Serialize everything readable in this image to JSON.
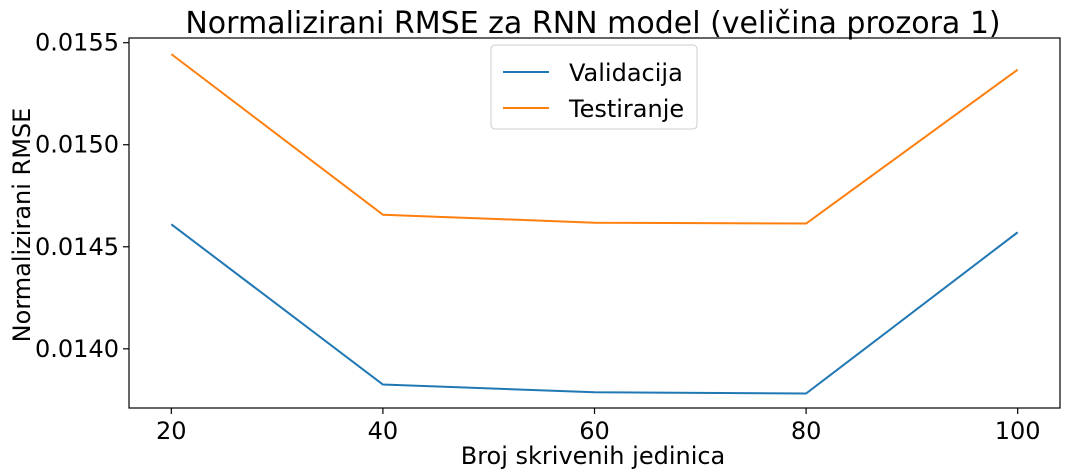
{
  "chart_data": {
    "type": "line",
    "title": "Normalizirani RMSE za RNN model (veličina prozora 1)",
    "xlabel": "Broj skrivenih jedinica",
    "ylabel": "Normalizirani RMSE",
    "x": [
      20,
      40,
      60,
      80,
      100
    ],
    "xticks": [
      "20",
      "40",
      "60",
      "80",
      "100"
    ],
    "yticks": [
      "0.0140",
      "0.0145",
      "0.0150",
      "0.0155"
    ],
    "xlim": [
      16,
      104
    ],
    "ylim": [
      0.01371,
      0.015523
    ],
    "grid": false,
    "legend_position": "top-center",
    "series": [
      {
        "name": "Validacija",
        "color": "#1f77b4",
        "values": [
          0.01461,
          0.013825,
          0.013787,
          0.013781,
          0.014571
        ]
      },
      {
        "name": "Testiranje",
        "color": "#ff7f0e",
        "values": [
          0.015444,
          0.014657,
          0.014618,
          0.014614,
          0.015368
        ]
      }
    ]
  }
}
